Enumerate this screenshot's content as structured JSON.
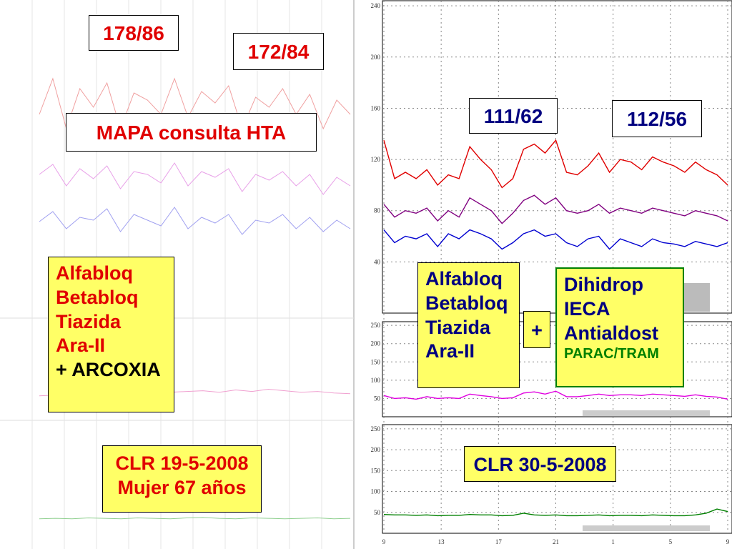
{
  "left": {
    "readings": [
      "178/86",
      "172/84"
    ],
    "title": "MAPA consulta HTA",
    "drugs": [
      "Alfabloq",
      "Betabloq",
      "Tiazida",
      "Ara-II",
      "+ ARCOXIA"
    ],
    "caption": [
      "CLR  19-5-2008",
      "Mujer 67 años"
    ],
    "bp": {
      "type": "line",
      "ylim": [
        20,
        240
      ],
      "series": [
        {
          "color": "#f0a0a0",
          "values": [
            160,
            185,
            150,
            178,
            165,
            182,
            150,
            175,
            170,
            160,
            185,
            158,
            176,
            168,
            180,
            150,
            172,
            165,
            178,
            160,
            174,
            150,
            170,
            160
          ]
        },
        {
          "color": "#e8a0e8",
          "values": [
            118,
            125,
            110,
            122,
            115,
            124,
            108,
            120,
            118,
            112,
            126,
            110,
            120,
            116,
            122,
            106,
            118,
            114,
            120,
            110,
            118,
            104,
            116,
            110
          ]
        },
        {
          "color": "#a0a0f0",
          "values": [
            85,
            92,
            80,
            88,
            86,
            94,
            78,
            90,
            86,
            82,
            95,
            80,
            88,
            84,
            90,
            76,
            86,
            84,
            90,
            80,
            88,
            78,
            86,
            80
          ]
        }
      ]
    },
    "pp": {
      "type": "line",
      "ylim": [
        0,
        260
      ],
      "color": "#f0a0d0",
      "values": [
        60,
        62,
        58,
        64,
        60,
        66,
        62,
        68,
        70,
        72,
        74,
        70,
        76,
        72,
        78,
        74,
        70,
        72,
        68,
        66
      ]
    },
    "hr": {
      "type": "line",
      "ylim": [
        0,
        260
      ],
      "color": "#90d090",
      "values": [
        40,
        41,
        40,
        42,
        41,
        40,
        42,
        41,
        40,
        42,
        43,
        41,
        40,
        42,
        41,
        40,
        41,
        42,
        40,
        41
      ]
    }
  },
  "right": {
    "readings": [
      "111/62",
      "112/56"
    ],
    "drugs": [
      "Alfabloq",
      "Betabloq",
      "Tiazida",
      "Ara-II"
    ],
    "plus": "+",
    "drugs2": [
      "Dihidrop",
      "IECA",
      "Antialdost"
    ],
    "drugs2_note": "PARAC/TRAM",
    "caption": "CLR 30-5-2008",
    "x": [
      9,
      9.75,
      10.5,
      11.25,
      12,
      12.75,
      13.5,
      14.25,
      15,
      15.75,
      16.5,
      17.25,
      18,
      18.75,
      19.5,
      20.25,
      21,
      21.75,
      22.5,
      23.25,
      24,
      24.75,
      25.5,
      26.25,
      27,
      27.75,
      28.5,
      29.25,
      30,
      30.75,
      31.5,
      32.25,
      33
    ],
    "xlim": [
      9,
      33.3
    ],
    "xticks": [
      9,
      13,
      17,
      21,
      {
        "value": 25,
        "label": "1"
      },
      {
        "value": 29,
        "label": "5"
      },
      {
        "value": 33,
        "label": "9"
      }
    ],
    "bp": {
      "type": "line",
      "ylim": [
        0,
        244
      ],
      "yticks": [
        40,
        80,
        120,
        160,
        200,
        240
      ],
      "series": [
        {
          "color": "#e00000",
          "values": [
            135,
            105,
            110,
            105,
            112,
            100,
            108,
            105,
            130,
            120,
            112,
            98,
            105,
            128,
            132,
            125,
            135,
            110,
            108,
            115,
            125,
            110,
            120,
            118,
            112,
            122,
            118,
            115,
            110,
            118,
            112,
            108,
            100
          ]
        },
        {
          "color": "#800080",
          "values": [
            85,
            75,
            80,
            78,
            82,
            72,
            80,
            75,
            90,
            85,
            80,
            70,
            78,
            88,
            92,
            85,
            90,
            80,
            78,
            80,
            85,
            78,
            82,
            80,
            78,
            82,
            80,
            78,
            76,
            80,
            78,
            76,
            72
          ]
        },
        {
          "color": "#0000d0",
          "values": [
            65,
            55,
            60,
            58,
            62,
            52,
            62,
            58,
            65,
            62,
            58,
            50,
            55,
            62,
            65,
            60,
            62,
            55,
            52,
            58,
            60,
            50,
            58,
            55,
            52,
            58,
            55,
            54,
            52,
            56,
            54,
            52,
            55
          ]
        }
      ]
    },
    "pp": {
      "type": "line",
      "ylim": [
        0,
        260
      ],
      "yticks": [
        50,
        100,
        150,
        200,
        250
      ],
      "color": "#e000e0",
      "values": [
        58,
        50,
        52,
        48,
        55,
        50,
        52,
        50,
        62,
        58,
        55,
        50,
        52,
        65,
        68,
        62,
        70,
        55,
        55,
        58,
        62,
        58,
        60,
        60,
        58,
        62,
        60,
        58,
        56,
        60,
        56,
        54,
        48
      ]
    },
    "hr": {
      "type": "line",
      "ylim": [
        0,
        260
      ],
      "yticks": [
        50,
        100,
        150,
        200,
        250
      ],
      "color": "#008000",
      "values": [
        45,
        44,
        44,
        43,
        44,
        42,
        43,
        43,
        45,
        44,
        44,
        42,
        43,
        48,
        44,
        43,
        44,
        42,
        42,
        43,
        44,
        42,
        43,
        43,
        42,
        44,
        43,
        42,
        42,
        44,
        48,
        58,
        52
      ]
    }
  }
}
